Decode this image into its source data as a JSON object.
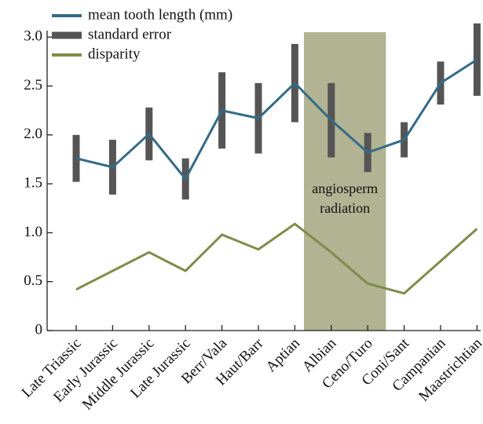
{
  "chart_data": {
    "type": "line",
    "categories": [
      "Late Triassic",
      "Early Jurassic",
      "Middle Jurassic",
      "Late Jurassic",
      "Berr/Vala",
      "Haut/Barr",
      "Aptian",
      "Albian",
      "Ceno/Turo",
      "Coni/Sant",
      "Campanian",
      "Maastrichtian"
    ],
    "series": [
      {
        "name": "mean tooth length (mm)",
        "color": "#336b87",
        "values": [
          1.76,
          1.67,
          2.01,
          1.55,
          2.25,
          2.17,
          2.53,
          2.15,
          1.82,
          1.95,
          2.53,
          2.77
        ],
        "error_name": "standard error",
        "error_color": "#555555",
        "errors": [
          0.24,
          0.28,
          0.27,
          0.21,
          0.39,
          0.36,
          0.4,
          0.38,
          0.2,
          0.18,
          0.22,
          0.37
        ]
      },
      {
        "name": "disparity",
        "color": "#7f8c4a",
        "values": [
          0.42,
          0.61,
          0.8,
          0.61,
          0.98,
          0.83,
          1.09,
          0.8,
          0.48,
          0.38,
          0.71,
          1.04
        ]
      }
    ],
    "annotation": [
      "angiosperm",
      "radiation"
    ],
    "shade_color": "#b1b392",
    "ylim": [
      0,
      3.05
    ],
    "yticks": [
      0,
      {
        "value": 0.5,
        "label": "0.5"
      },
      {
        "value": 1,
        "label": "1.0"
      },
      {
        "value": 1.5,
        "label": "1.5"
      },
      {
        "value": 2,
        "label": "2.0"
      },
      {
        "value": 2.5,
        "label": "2.5"
      },
      {
        "value": 3,
        "label": "3.0"
      }
    ],
    "legend": "upper left"
  }
}
